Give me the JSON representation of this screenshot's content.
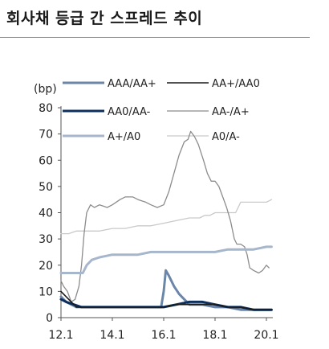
{
  "title": "회사채 등급 간 스프레드 추이",
  "chart_data": {
    "type": "line",
    "ylabel": "(bp)",
    "ylim": [
      0,
      80
    ],
    "yticks": [
      0,
      10,
      20,
      30,
      40,
      50,
      60,
      70,
      80
    ],
    "xlim": [
      2012.0,
      2020.25
    ],
    "xticks": [
      {
        "value": 2012.0,
        "label": "12.1"
      },
      {
        "value": 2014.0,
        "label": "14.1"
      },
      {
        "value": 2016.0,
        "label": "16.1"
      },
      {
        "value": 2018.0,
        "label": "18.1"
      },
      {
        "value": 2020.0,
        "label": "20.1"
      }
    ],
    "grid": false,
    "legend": "top",
    "series": [
      {
        "name": "AAA/AA+",
        "color": "#6b86a8",
        "width": 3,
        "points": [
          [
            2012.0,
            8
          ],
          [
            2012.2,
            6
          ],
          [
            2012.4,
            5
          ],
          [
            2012.6,
            4
          ],
          [
            2012.8,
            4
          ],
          [
            2013.0,
            4
          ],
          [
            2013.5,
            4
          ],
          [
            2014.0,
            4
          ],
          [
            2014.5,
            4
          ],
          [
            2015.0,
            4
          ],
          [
            2015.5,
            4
          ],
          [
            2015.9,
            4
          ],
          [
            2016.0,
            10
          ],
          [
            2016.08,
            18
          ],
          [
            2016.2,
            16
          ],
          [
            2016.4,
            12
          ],
          [
            2016.6,
            9
          ],
          [
            2016.8,
            7
          ],
          [
            2017.0,
            5
          ],
          [
            2017.5,
            5
          ],
          [
            2018.0,
            4
          ],
          [
            2018.5,
            4
          ],
          [
            2019.0,
            3
          ],
          [
            2019.5,
            3
          ],
          [
            2020.0,
            3
          ],
          [
            2020.2,
            3
          ]
        ]
      },
      {
        "name": "AA+/AA0",
        "color": "#1a1a1a",
        "width": 1.6,
        "points": [
          [
            2012.0,
            10
          ],
          [
            2012.2,
            8
          ],
          [
            2012.4,
            6
          ],
          [
            2012.6,
            4
          ],
          [
            2012.8,
            4
          ],
          [
            2013.0,
            4
          ],
          [
            2013.5,
            4
          ],
          [
            2014.0,
            4
          ],
          [
            2014.5,
            4
          ],
          [
            2015.0,
            4
          ],
          [
            2015.5,
            4
          ],
          [
            2016.0,
            4
          ],
          [
            2016.5,
            5
          ],
          [
            2017.0,
            5
          ],
          [
            2017.5,
            5
          ],
          [
            2018.0,
            5
          ],
          [
            2018.5,
            4
          ],
          [
            2019.0,
            4
          ],
          [
            2019.5,
            3
          ],
          [
            2020.0,
            3
          ],
          [
            2020.2,
            3
          ]
        ]
      },
      {
        "name": "AA0/AA-",
        "color": "#0c2f5e",
        "width": 3,
        "points": [
          [
            2012.0,
            7
          ],
          [
            2012.2,
            6
          ],
          [
            2012.5,
            5
          ],
          [
            2012.8,
            4
          ],
          [
            2013.0,
            4
          ],
          [
            2013.5,
            4
          ],
          [
            2014.0,
            4
          ],
          [
            2014.5,
            4
          ],
          [
            2015.0,
            4
          ],
          [
            2015.5,
            4
          ],
          [
            2016.0,
            4
          ],
          [
            2016.5,
            5
          ],
          [
            2017.0,
            6
          ],
          [
            2017.5,
            6
          ],
          [
            2018.0,
            5
          ],
          [
            2018.5,
            4
          ],
          [
            2019.0,
            4
          ],
          [
            2019.5,
            3
          ],
          [
            2020.0,
            3
          ],
          [
            2020.2,
            3
          ]
        ]
      },
      {
        "name": "AA-/A+",
        "color": "#8c8c8c",
        "width": 1.3,
        "points": [
          [
            2012.0,
            14
          ],
          [
            2012.1,
            12
          ],
          [
            2012.25,
            10
          ],
          [
            2012.4,
            6
          ],
          [
            2012.55,
            7
          ],
          [
            2012.7,
            12
          ],
          [
            2012.8,
            20
          ],
          [
            2012.9,
            32
          ],
          [
            2013.0,
            40
          ],
          [
            2013.15,
            43
          ],
          [
            2013.3,
            42
          ],
          [
            2013.5,
            43
          ],
          [
            2013.8,
            42
          ],
          [
            2014.0,
            43
          ],
          [
            2014.3,
            45
          ],
          [
            2014.5,
            46
          ],
          [
            2014.8,
            46
          ],
          [
            2015.0,
            45
          ],
          [
            2015.3,
            44
          ],
          [
            2015.5,
            43
          ],
          [
            2015.75,
            42
          ],
          [
            2016.0,
            43
          ],
          [
            2016.2,
            48
          ],
          [
            2016.4,
            55
          ],
          [
            2016.6,
            62
          ],
          [
            2016.8,
            67
          ],
          [
            2016.95,
            68
          ],
          [
            2017.05,
            71
          ],
          [
            2017.2,
            69
          ],
          [
            2017.35,
            66
          ],
          [
            2017.55,
            60
          ],
          [
            2017.7,
            55
          ],
          [
            2017.85,
            52
          ],
          [
            2018.0,
            52
          ],
          [
            2018.15,
            50
          ],
          [
            2018.3,
            46
          ],
          [
            2018.45,
            42
          ],
          [
            2018.6,
            37
          ],
          [
            2018.75,
            30
          ],
          [
            2018.85,
            28
          ],
          [
            2019.0,
            28
          ],
          [
            2019.15,
            27
          ],
          [
            2019.25,
            24
          ],
          [
            2019.35,
            19
          ],
          [
            2019.5,
            18
          ],
          [
            2019.7,
            17
          ],
          [
            2019.85,
            18
          ],
          [
            2020.0,
            20
          ],
          [
            2020.1,
            19
          ]
        ]
      },
      {
        "name": "A+/A0",
        "color": "#a6b6cd",
        "width": 3,
        "points": [
          [
            2012.0,
            17
          ],
          [
            2012.3,
            17
          ],
          [
            2012.6,
            17
          ],
          [
            2012.85,
            17
          ],
          [
            2013.0,
            20
          ],
          [
            2013.2,
            22
          ],
          [
            2013.5,
            23
          ],
          [
            2014.0,
            24
          ],
          [
            2014.5,
            24
          ],
          [
            2015.0,
            24
          ],
          [
            2015.5,
            25
          ],
          [
            2016.0,
            25
          ],
          [
            2016.5,
            25
          ],
          [
            2017.0,
            25
          ],
          [
            2017.5,
            25
          ],
          [
            2018.0,
            25
          ],
          [
            2018.5,
            26
          ],
          [
            2019.0,
            26
          ],
          [
            2019.5,
            26
          ],
          [
            2020.0,
            27
          ],
          [
            2020.2,
            27
          ]
        ]
      },
      {
        "name": "A0/A-",
        "color": "#c9c9c9",
        "width": 1.3,
        "points": [
          [
            2012.0,
            32
          ],
          [
            2012.3,
            32
          ],
          [
            2012.6,
            33
          ],
          [
            2013.0,
            33
          ],
          [
            2013.5,
            33
          ],
          [
            2014.0,
            34
          ],
          [
            2014.5,
            34
          ],
          [
            2015.0,
            35
          ],
          [
            2015.5,
            35
          ],
          [
            2016.0,
            36
          ],
          [
            2016.5,
            37
          ],
          [
            2017.0,
            38
          ],
          [
            2017.4,
            38
          ],
          [
            2017.6,
            39
          ],
          [
            2017.8,
            39
          ],
          [
            2018.0,
            40
          ],
          [
            2018.5,
            40
          ],
          [
            2018.8,
            40
          ],
          [
            2019.0,
            44
          ],
          [
            2019.5,
            44
          ],
          [
            2020.0,
            44
          ],
          [
            2020.2,
            45
          ]
        ]
      }
    ]
  }
}
